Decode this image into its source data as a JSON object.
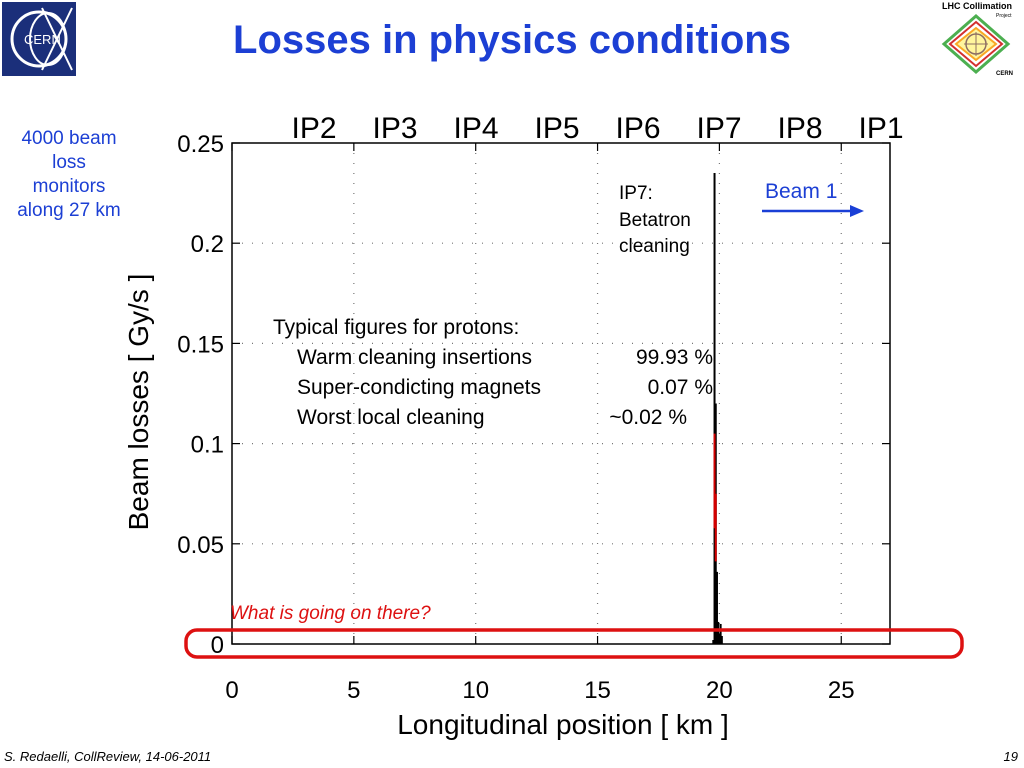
{
  "header": {
    "title": "Losses in physics conditions",
    "cern_logo_text": "CERN",
    "lhc_logo_text": "LHC Collimation",
    "lhc_logo_sub": "Project",
    "lhc_logo_bottom": "CERN"
  },
  "sidenote": [
    "4000 beam",
    "loss",
    "monitors",
    "along 27 km"
  ],
  "chart_data": {
    "type": "line",
    "xlabel": "Longitudinal position [ km ]",
    "ylabel": "Beam losses [ Gy/s ]",
    "xlim": [
      0,
      27
    ],
    "ylim": [
      0,
      0.25
    ],
    "xticks": [
      "0",
      "5",
      "10",
      "15",
      "20",
      "25"
    ],
    "yticks": [
      "0",
      "0.05",
      "0.1",
      "0.15",
      "0.2",
      "0.25"
    ],
    "grid": true,
    "ip_labels": [
      "IP2",
      "IP3",
      "IP4",
      "IP5",
      "IP6",
      "IP7",
      "IP8",
      "IP1"
    ],
    "series": [
      {
        "name": "losses",
        "color": "#000000",
        "x": [
          19.75,
          19.8,
          19.85,
          19.9,
          19.95,
          20.0,
          20.05,
          20.1
        ],
        "values": [
          0.002,
          0.235,
          0.12,
          0.036,
          0.011,
          0.005,
          0.01,
          0.004
        ]
      },
      {
        "name": "losses-red",
        "color": "#d40000",
        "x": [
          19.8,
          19.85
        ],
        "values": [
          0.105,
          0.075
        ]
      }
    ],
    "annotations": {
      "ip7": [
        "IP7:",
        "Betatron",
        "cleaning"
      ],
      "beam": "Beam 1",
      "typical_title": "Typical figures for protons:",
      "typical_rows": [
        {
          "label": "Warm cleaning insertions",
          "value": "99.93 %"
        },
        {
          "label": "Super-condicting magnets",
          "value": "0.07 %"
        },
        {
          "label": "Worst local cleaning",
          "value": "~0.02 %"
        }
      ],
      "question": "What is going on there?"
    }
  },
  "footer": {
    "author": "S. Redaelli, CollReview, 14-06-2011",
    "page": "19"
  },
  "colors": {
    "title": "#1c3fd4",
    "highlight": "#dd1111",
    "arrow": "#1a3fd6"
  }
}
